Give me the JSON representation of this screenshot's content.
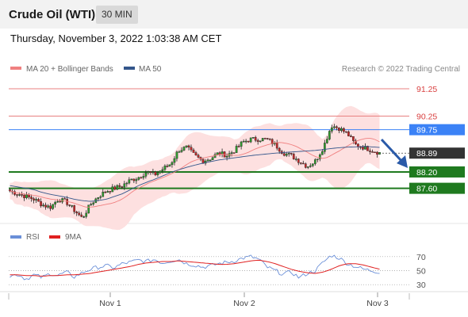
{
  "header": {
    "title": "Crude Oil (WTI)",
    "timeframe": "30 MIN",
    "datetime": "Thursday, November 3, 2022 1:03:38 AM CET"
  },
  "legend": {
    "ma20_label": "MA 20 + Bollinger Bands",
    "ma50_label": "MA 50",
    "copyright": "Research © 2022 Trading Central"
  },
  "rsi_legend": {
    "rsi_label": "RSI",
    "ma_label": "9MA"
  },
  "colors": {
    "ma20": "#f08080",
    "ma50": "#34568b",
    "bollinger_fill": "#fde0e0",
    "support": "#1f7a1f",
    "pivot": "#3b82f6",
    "resistance": "#e88080",
    "last_price": "#333333",
    "rsi": "#6a8fd8",
    "rsi_ma": "#e02020",
    "arrow": "#2a5aa8"
  },
  "chart_data": [
    {
      "type": "candlestick",
      "ylim": [
        86.6,
        91.6
      ],
      "x_ticks": [
        "Nov 1",
        "Nov 2",
        "Nov 3"
      ],
      "price_levels": [
        {
          "label": "91.25",
          "value": 91.25,
          "kind": "resistance"
        },
        {
          "label": "90.25",
          "value": 90.25,
          "kind": "resistance"
        },
        {
          "label": "89.75",
          "value": 89.75,
          "kind": "pivot"
        },
        {
          "label": "88.89",
          "value": 88.89,
          "kind": "last"
        },
        {
          "label": "88.20",
          "value": 88.2,
          "kind": "support"
        },
        {
          "label": "87.60",
          "value": 87.6,
          "kind": "support"
        }
      ],
      "close_path": [
        87.5,
        87.4,
        87.3,
        87.2,
        87.0,
        86.9,
        87.2,
        87.1,
        86.8,
        86.5,
        87.0,
        87.3,
        87.5,
        87.6,
        87.7,
        87.9,
        88.0,
        88.2,
        88.1,
        88.3,
        88.5,
        89.0,
        89.1,
        88.8,
        88.6,
        88.7,
        88.9,
        88.8,
        89.0,
        89.3,
        89.4,
        89.4,
        89.4,
        89.2,
        88.9,
        88.8,
        88.6,
        88.4,
        88.6,
        89.1,
        89.9,
        89.8,
        89.6,
        89.2,
        89.1,
        89.0,
        88.9
      ],
      "ma50_path": [
        87.7,
        87.65,
        87.6,
        87.55,
        87.45,
        87.38,
        87.33,
        87.27,
        87.2,
        87.15,
        87.12,
        87.15,
        87.2,
        87.3,
        87.4,
        87.55,
        87.7,
        87.82,
        87.93,
        88.05,
        88.18,
        88.28,
        88.37,
        88.45,
        88.52,
        88.58,
        88.64,
        88.68,
        88.72,
        88.76,
        88.8,
        88.83,
        88.86,
        88.89,
        88.91,
        88.93,
        88.95,
        88.97,
        88.99,
        89.02,
        89.06,
        89.09,
        89.11,
        89.12,
        89.13,
        89.12,
        89.1
      ]
    },
    {
      "type": "line",
      "ylim": [
        20,
        80
      ],
      "y_ticks": [
        "70",
        "50",
        "30"
      ],
      "x_ticks": [
        "Nov 1",
        "Nov 2",
        "Nov 3"
      ],
      "series": [
        {
          "name": "RSI",
          "values": [
            42,
            45,
            38,
            44,
            40,
            46,
            43,
            48,
            41,
            47,
            52,
            55,
            57,
            54,
            60,
            62,
            65,
            63,
            66,
            61,
            64,
            66,
            60,
            58,
            55,
            57,
            60,
            62,
            64,
            68,
            70,
            66,
            55,
            50,
            45,
            48,
            40,
            46,
            50,
            62,
            72,
            68,
            60,
            56,
            52,
            50,
            48
          ]
        },
        {
          "name": "9MA",
          "values": [
            44,
            44,
            43,
            43,
            42,
            43,
            43,
            44,
            44,
            45,
            46,
            48,
            50,
            52,
            54,
            56,
            59,
            61,
            62,
            63,
            63,
            64,
            63,
            62,
            61,
            60,
            59,
            59,
            60,
            62,
            64,
            65,
            63,
            60,
            56,
            52,
            49,
            47,
            46,
            48,
            52,
            57,
            60,
            60,
            58,
            55,
            52
          ]
        }
      ]
    }
  ]
}
